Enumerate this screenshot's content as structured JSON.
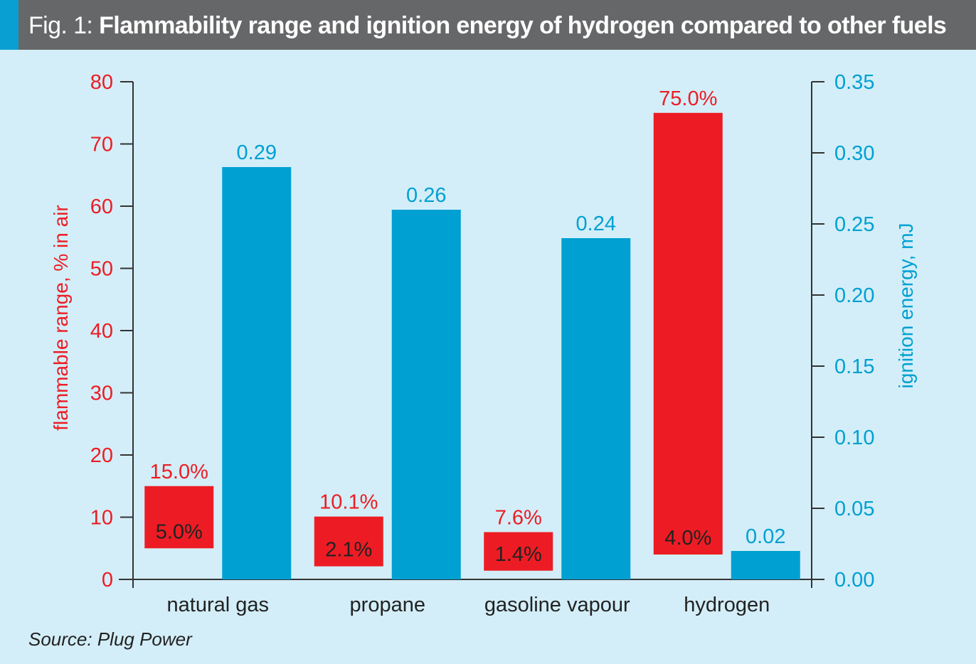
{
  "header": {
    "fig_label": "Fig. 1:",
    "title": "Flammability range and ignition energy of hydrogen compared to other fuels"
  },
  "source": "Source: Plug Power",
  "colors": {
    "flammable": "#ed1c24",
    "ignition": "#00a0d2",
    "background": "#d3eef8",
    "header": "#666768",
    "header_accent": "#0a9fd2"
  },
  "chart_data": {
    "type": "bar",
    "categories": [
      "natural gas",
      "propane",
      "gasoline vapour",
      "hydrogen"
    ],
    "left_axis": {
      "label": "flammable range, % in air",
      "ylim": [
        0,
        80
      ],
      "ticks": [
        "0",
        "10",
        "20",
        "30",
        "40",
        "50",
        "60",
        "70",
        "80"
      ]
    },
    "right_axis": {
      "label": "ignition energy, mJ",
      "ylim": [
        0,
        0.35
      ],
      "ticks": [
        "0.00",
        "0.05",
        "0.10",
        "0.15",
        "0.20",
        "0.25",
        "0.30",
        "0.35"
      ]
    },
    "flammable_range": [
      {
        "low": 5.0,
        "high": 15.0,
        "low_label": "5.0%",
        "high_label": "15.0%"
      },
      {
        "low": 2.1,
        "high": 10.1,
        "low_label": "2.1%",
        "high_label": "10.1%"
      },
      {
        "low": 1.4,
        "high": 7.6,
        "low_label": "1.4%",
        "high_label": "7.6%"
      },
      {
        "low": 4.0,
        "high": 75.0,
        "low_label": "4.0%",
        "high_label": "75.0%"
      }
    ],
    "ignition_energy": [
      {
        "value": 0.29,
        "label": "0.29"
      },
      {
        "value": 0.26,
        "label": "0.26"
      },
      {
        "value": 0.24,
        "label": "0.24"
      },
      {
        "value": 0.02,
        "label": "0.02"
      }
    ],
    "grid": false
  }
}
